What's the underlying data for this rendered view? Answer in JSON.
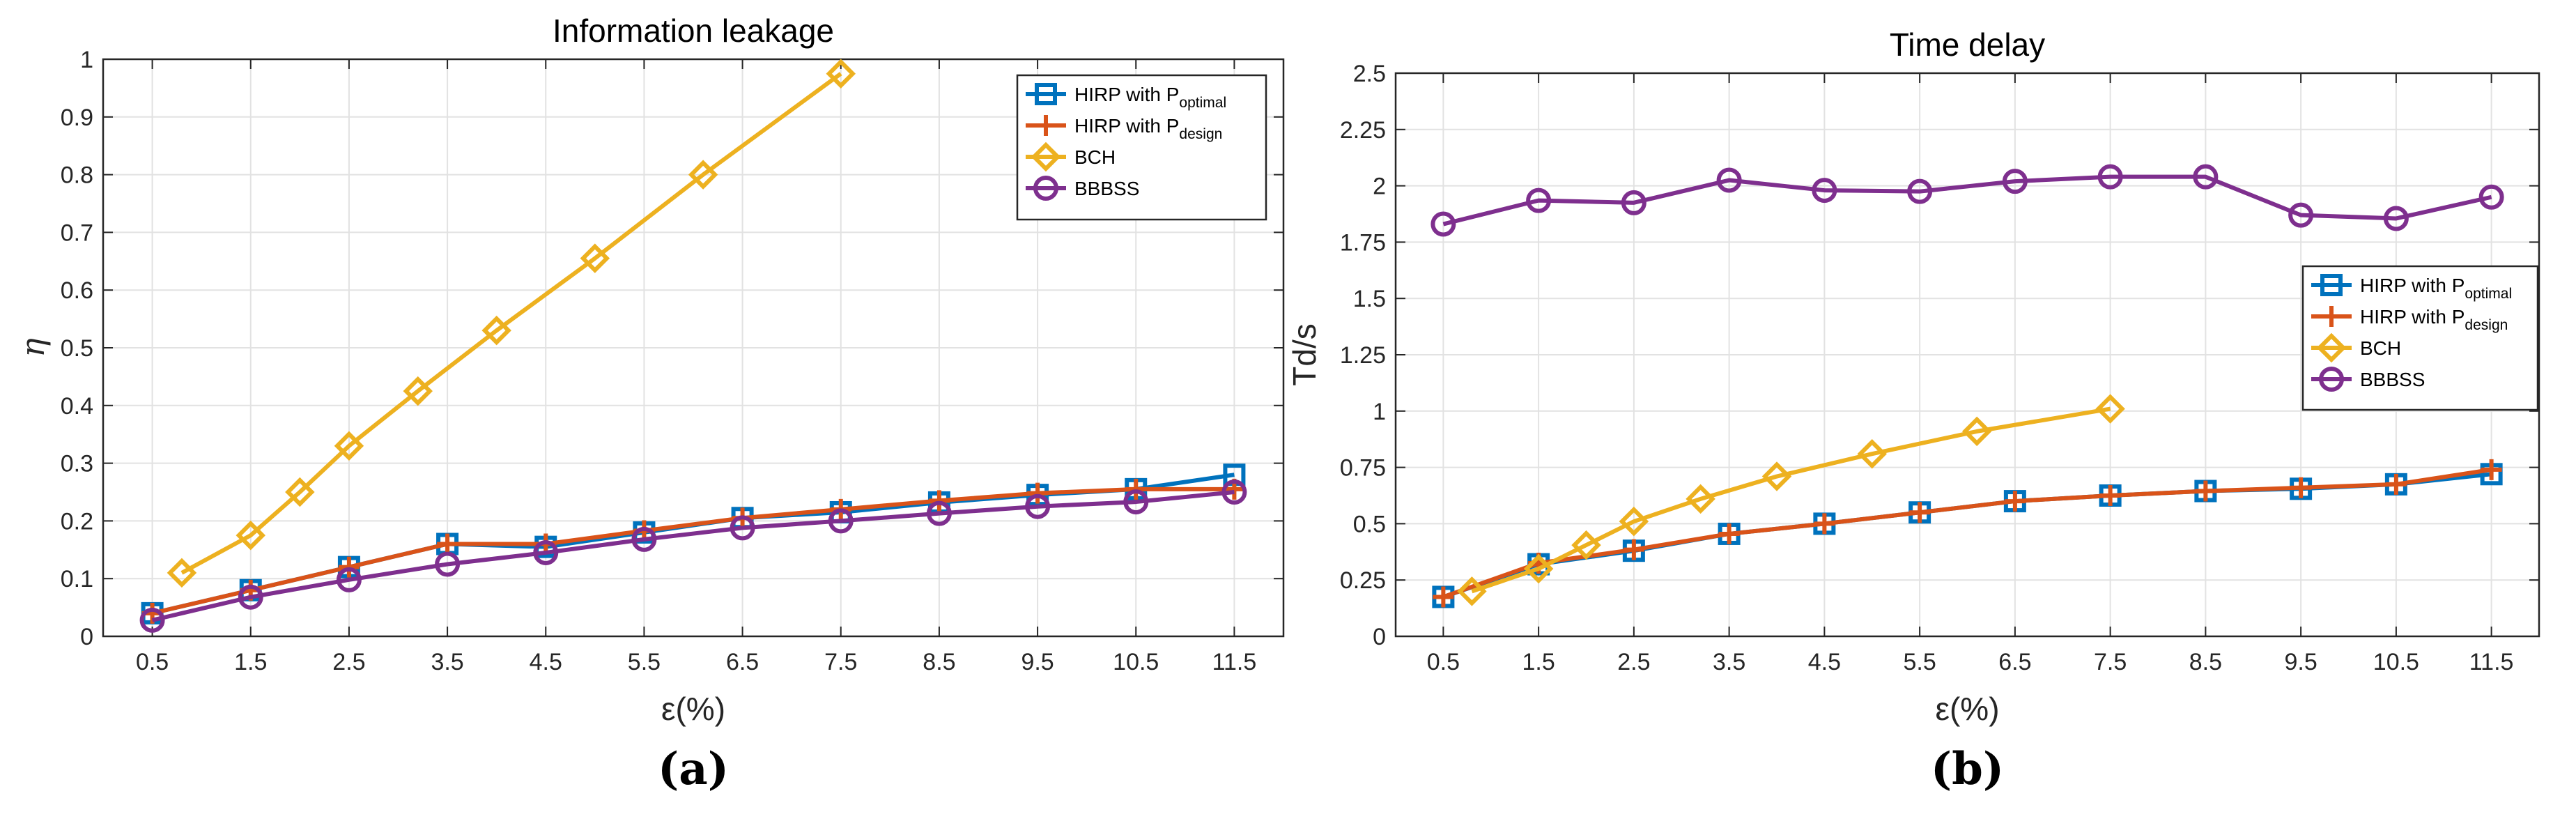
{
  "chart_data": [
    {
      "panel": "(a)",
      "type": "line",
      "title": "Information leakage",
      "xlabel": "ε(%)",
      "ylabel": "η",
      "xlim": [
        0,
        12
      ],
      "ylim": [
        0,
        1
      ],
      "xticks": [
        0.5,
        1.5,
        2.5,
        3.5,
        4.5,
        5.5,
        6.5,
        7.5,
        8.5,
        9.5,
        10.5,
        11.5
      ],
      "xticklabels": [
        "0.5",
        "1.5",
        "2.5",
        "3.5",
        "4.5",
        "5.5",
        "6.5",
        "7.5",
        "8.5",
        "9.5",
        "10.5",
        "11.5"
      ],
      "yticks": [
        0,
        0.1,
        0.2,
        0.3,
        0.4,
        0.5,
        0.6,
        0.7,
        0.8,
        0.9,
        1
      ],
      "yticklabels": [
        "0",
        "0.1",
        "0.2",
        "0.3",
        "0.4",
        "0.5",
        "0.6",
        "0.7",
        "0.8",
        "0.9",
        "1"
      ],
      "grid": true,
      "legend_position": "top-right",
      "series": [
        {
          "name": "HIRP with P_optimal",
          "label": "HIRP with P",
          "sub": "optimal",
          "color": "#0072BD",
          "marker": "square",
          "x": [
            0.5,
            1.5,
            2.5,
            3.5,
            4.5,
            5.5,
            6.5,
            7.5,
            8.5,
            9.5,
            10.5,
            11.5
          ],
          "y": [
            0.04,
            0.08,
            0.12,
            0.16,
            0.155,
            0.18,
            0.205,
            0.215,
            0.232,
            0.245,
            0.255,
            0.28
          ]
        },
        {
          "name": "HIRP with P_design",
          "label": "HIRP with P",
          "sub": "design",
          "color": "#D95319",
          "marker": "plus",
          "x": [
            0.5,
            1.5,
            2.5,
            3.5,
            4.5,
            5.5,
            6.5,
            7.5,
            8.5,
            9.5,
            10.5,
            11.5
          ],
          "y": [
            0.04,
            0.08,
            0.12,
            0.16,
            0.16,
            0.183,
            0.205,
            0.22,
            0.235,
            0.248,
            0.255,
            0.255
          ]
        },
        {
          "name": "BCH",
          "label": "BCH",
          "sub": "",
          "color": "#EDB120",
          "marker": "diamond",
          "x": [
            0.8,
            1.5,
            2.0,
            2.5,
            3.2,
            4.0,
            5.0,
            6.1,
            7.5
          ],
          "y": [
            0.11,
            0.175,
            0.25,
            0.33,
            0.425,
            0.53,
            0.655,
            0.8,
            0.975
          ]
        },
        {
          "name": "BBBSS",
          "label": "BBBSS",
          "sub": "",
          "color": "#7E2F8E",
          "marker": "circle",
          "x": [
            0.5,
            1.5,
            2.5,
            3.5,
            4.5,
            5.5,
            6.5,
            7.5,
            8.5,
            9.5,
            10.5,
            11.5
          ],
          "y": [
            0.028,
            0.068,
            0.098,
            0.125,
            0.145,
            0.168,
            0.188,
            0.2,
            0.213,
            0.225,
            0.233,
            0.25
          ]
        }
      ]
    },
    {
      "panel": "(b)",
      "type": "line",
      "title": "Time delay",
      "xlabel": "ε(%)",
      "ylabel": "Td/s",
      "xlim": [
        0,
        12
      ],
      "ylim": [
        0,
        2.5
      ],
      "xticks": [
        0.5,
        1.5,
        2.5,
        3.5,
        4.5,
        5.5,
        6.5,
        7.5,
        8.5,
        9.5,
        10.5,
        11.5
      ],
      "xticklabels": [
        "0.5",
        "1.5",
        "2.5",
        "3.5",
        "4.5",
        "5.5",
        "6.5",
        "7.5",
        "8.5",
        "9.5",
        "10.5",
        "11.5"
      ],
      "yticks": [
        0,
        0.25,
        0.5,
        0.75,
        1,
        1.25,
        1.5,
        1.75,
        2,
        2.25,
        2.5
      ],
      "yticklabels": [
        "0",
        "0.25",
        "0.5",
        "0.75",
        "1",
        "1.25",
        "1.5",
        "1.75",
        "2",
        "2.25",
        "2.5"
      ],
      "grid": true,
      "legend_position": "right",
      "series": [
        {
          "name": "HIRP with P_optimal",
          "label": "HIRP with P",
          "sub": "optimal",
          "color": "#0072BD",
          "marker": "square",
          "x": [
            0.5,
            1.5,
            2.5,
            3.5,
            4.5,
            5.5,
            6.5,
            7.5,
            8.5,
            9.5,
            10.5,
            11.5
          ],
          "y": [
            0.175,
            0.32,
            0.38,
            0.455,
            0.5,
            0.55,
            0.6,
            0.625,
            0.645,
            0.655,
            0.675,
            0.72
          ]
        },
        {
          "name": "HIRP with P_design",
          "label": "HIRP with P",
          "sub": "design",
          "color": "#D95319",
          "marker": "plus",
          "x": [
            0.5,
            1.5,
            2.5,
            3.5,
            4.5,
            5.5,
            6.5,
            7.5,
            8.5,
            9.5,
            10.5,
            11.5
          ],
          "y": [
            0.175,
            0.325,
            0.385,
            0.455,
            0.5,
            0.55,
            0.6,
            0.625,
            0.645,
            0.66,
            0.675,
            0.74
          ]
        },
        {
          "name": "BCH",
          "label": "BCH",
          "sub": "",
          "color": "#EDB120",
          "marker": "diamond",
          "x": [
            0.8,
            1.5,
            2.0,
            2.5,
            3.2,
            4.0,
            5.0,
            6.1,
            7.5
          ],
          "y": [
            0.2,
            0.3,
            0.405,
            0.51,
            0.61,
            0.71,
            0.81,
            0.91,
            1.01
          ]
        },
        {
          "name": "BBBSS",
          "label": "BBBSS",
          "sub": "",
          "color": "#7E2F8E",
          "marker": "circle",
          "x": [
            0.5,
            1.5,
            2.5,
            3.5,
            4.5,
            5.5,
            6.5,
            7.5,
            8.5,
            9.5,
            10.5,
            11.5
          ],
          "y": [
            1.83,
            1.935,
            1.925,
            2.025,
            1.98,
            1.975,
            2.02,
            2.04,
            2.04,
            1.87,
            1.855,
            1.95
          ]
        }
      ]
    }
  ]
}
